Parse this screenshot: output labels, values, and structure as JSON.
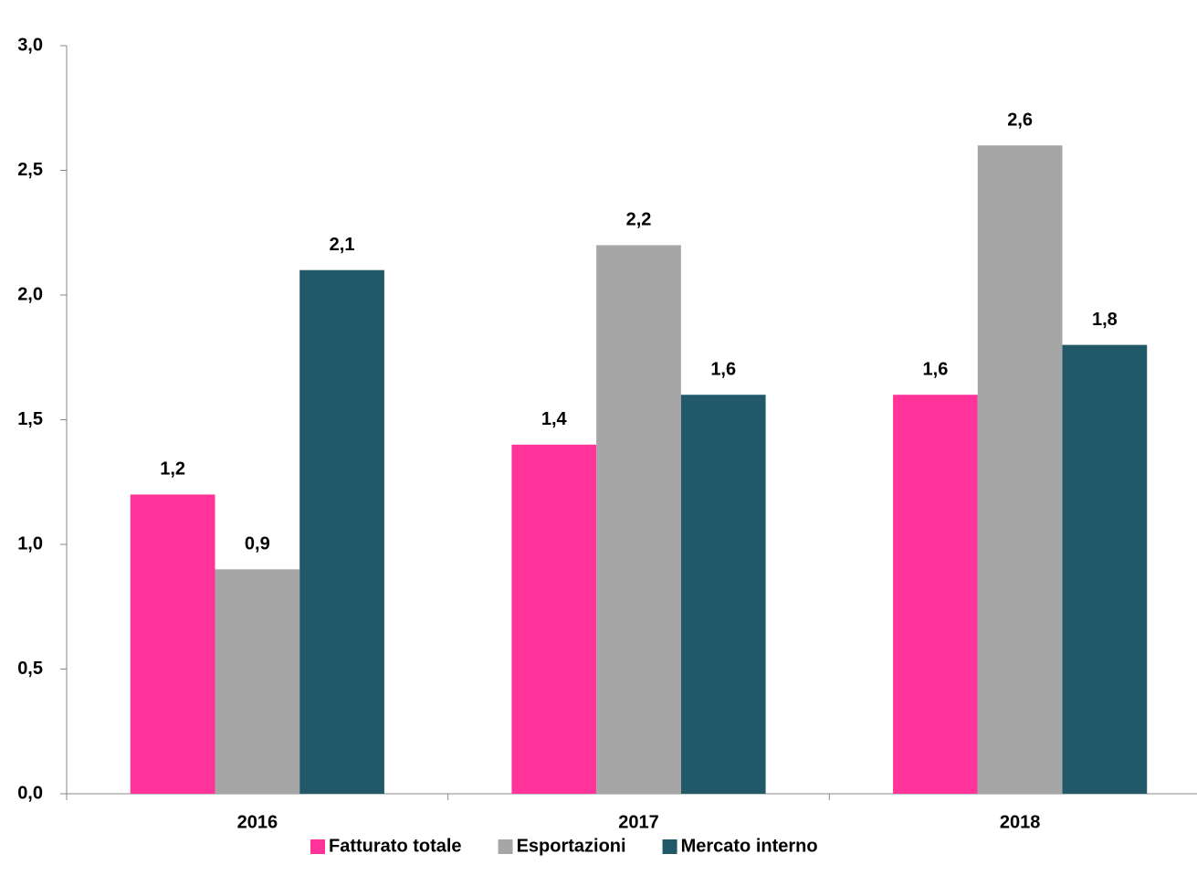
{
  "chart_data": {
    "type": "bar",
    "categories": [
      "2016",
      "2017",
      "2018"
    ],
    "series": [
      {
        "name": "Fatturato totale",
        "color": "#ff3399",
        "values": [
          1.2,
          1.4,
          1.6
        ],
        "value_labels": [
          "1,2",
          "1,4",
          "1,6"
        ]
      },
      {
        "name": "Esportazioni",
        "color": "#a6a6a6",
        "values": [
          0.9,
          2.2,
          2.6
        ],
        "value_labels": [
          "0,9",
          "2,2",
          "2,6"
        ]
      },
      {
        "name": "Mercato interno",
        "color": "#215968",
        "values": [
          2.1,
          1.6,
          1.8
        ],
        "value_labels": [
          "2,1",
          "1,6",
          "1,8"
        ]
      }
    ],
    "ylim": [
      0,
      3
    ],
    "yticks": [
      {
        "value": 0,
        "label": "0,0"
      },
      {
        "value": 0.5,
        "label": "0,5"
      },
      {
        "value": 1,
        "label": "1,0"
      },
      {
        "value": 1.5,
        "label": "1,5"
      },
      {
        "value": 2,
        "label": "2,0"
      },
      {
        "value": 2.5,
        "label": "2,5"
      },
      {
        "value": 3,
        "label": "3,0"
      }
    ],
    "legend": "bottom"
  }
}
